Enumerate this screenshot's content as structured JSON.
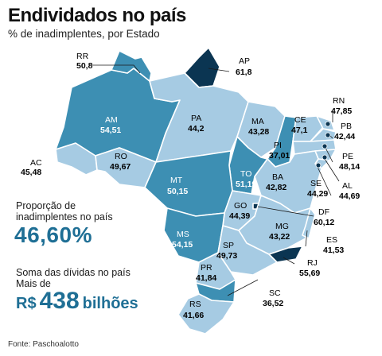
{
  "title": "Endividados no país",
  "subtitle": "% de inadimplentes, por Estado",
  "states": {
    "RR": {
      "code": "RR",
      "value": "50,8"
    },
    "AP": {
      "code": "AP",
      "value": "61,8"
    },
    "AM": {
      "code": "AM",
      "value": "54,51"
    },
    "PA": {
      "code": "PA",
      "value": "44,2"
    },
    "MA": {
      "code": "MA",
      "value": "43,28"
    },
    "CE": {
      "code": "CE",
      "value": "47,1"
    },
    "RN": {
      "code": "RN",
      "value": "47,85"
    },
    "PB": {
      "code": "PB",
      "value": "42,44"
    },
    "PE": {
      "code": "PE",
      "value": "48,14"
    },
    "AL": {
      "code": "AL",
      "value": "44,69"
    },
    "SE": {
      "code": "SE",
      "value": "44,29"
    },
    "PI": {
      "code": "PI",
      "value": "37,01"
    },
    "AC": {
      "code": "AC",
      "value": "45,48"
    },
    "RO": {
      "code": "RO",
      "value": "49,67"
    },
    "TO": {
      "code": "TO",
      "value": "51,19"
    },
    "BA": {
      "code": "BA",
      "value": "42,82"
    },
    "MT": {
      "code": "MT",
      "value": "50,15"
    },
    "DF": {
      "code": "DF",
      "value": "60,12"
    },
    "GO": {
      "code": "GO",
      "value": "44,39"
    },
    "MG": {
      "code": "MG",
      "value": "43,22"
    },
    "ES": {
      "code": "ES",
      "value": "41,53"
    },
    "MS": {
      "code": "MS",
      "value": "54,15"
    },
    "SP": {
      "code": "SP",
      "value": "49,73"
    },
    "RJ": {
      "code": "RJ",
      "value": "55,69"
    },
    "PR": {
      "code": "PR",
      "value": "41,84"
    },
    "SC": {
      "code": "SC",
      "value": "36,52"
    },
    "RS": {
      "code": "RS",
      "value": "41,66"
    }
  },
  "stats": {
    "proportion_label": "Proporção de inadimplentes no país",
    "proportion_value": "46,60%",
    "debt_label": "Soma das dívidas no país Mais de",
    "debt_currency": "R$",
    "debt_value": "438",
    "debt_unit": "bilhões"
  },
  "source": "Fonte: Paschoalotto",
  "colors": {
    "light": "#a6cbe3",
    "medium": "#3d8fb3",
    "dark": "#1d6a92",
    "darkest": "#0b3552",
    "border": "#ffffff",
    "accent_text": "#1f6f95"
  }
}
